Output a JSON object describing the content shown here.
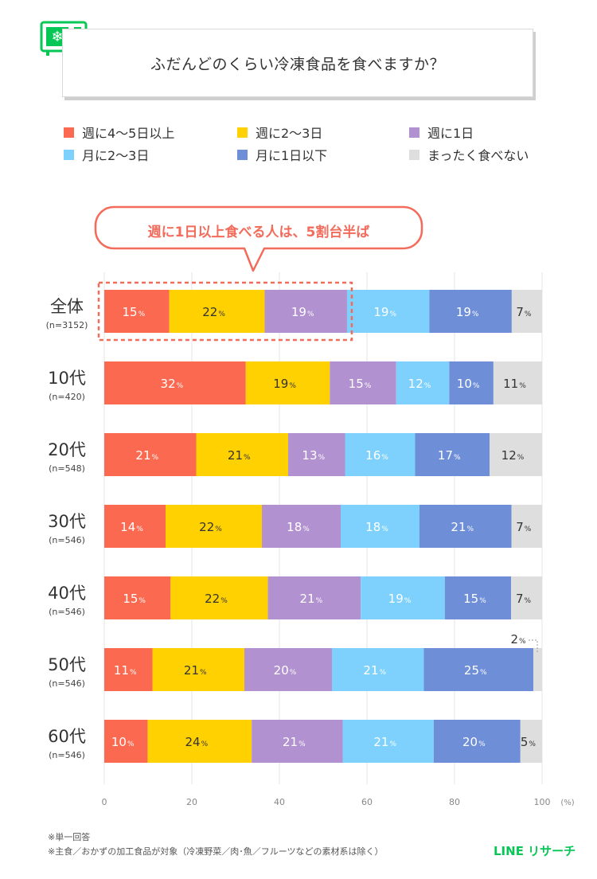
{
  "title": "ふだんどのくらい冷凍食品を食べますか？",
  "legend": [
    {
      "label": "週に4～5日以上",
      "color": "#fb6a50"
    },
    {
      "label": "週に2～3日",
      "color": "#ffd100"
    },
    {
      "label": "週に1日",
      "color": "#b191cf"
    },
    {
      "label": "月に2～3日",
      "color": "#7dd1fc"
    },
    {
      "label": "月に1日以下",
      "color": "#6f8ed8"
    },
    {
      "label": "まったく食べない",
      "color": "#dedede"
    }
  ],
  "callout": "週に1日以上食べる人は、5割台半ば",
  "chart_data": {
    "type": "bar",
    "orientation": "horizontal",
    "stacked": true,
    "xlim": [
      0,
      100
    ],
    "x_ticks": [
      "0",
      "20",
      "40",
      "60",
      "80",
      "100"
    ],
    "x_unit": "(%)",
    "unit_suffix": "%",
    "categories": [
      {
        "name": "全体",
        "n": "(n=3152)"
      },
      {
        "name": "10代",
        "n": "(n=420)"
      },
      {
        "name": "20代",
        "n": "(n=548)"
      },
      {
        "name": "30代",
        "n": "(n=546)"
      },
      {
        "name": "40代",
        "n": "(n=546)"
      },
      {
        "name": "50代",
        "n": "(n=546)"
      },
      {
        "name": "60代",
        "n": "(n=546)"
      }
    ],
    "series": [
      {
        "name": "週に4～5日以上",
        "values": [
          15,
          32,
          21,
          14,
          15,
          11,
          10
        ]
      },
      {
        "name": "週に2～3日",
        "values": [
          22,
          19,
          21,
          22,
          22,
          21,
          24
        ]
      },
      {
        "name": "週に1日",
        "values": [
          19,
          15,
          13,
          18,
          21,
          20,
          21
        ]
      },
      {
        "name": "月に2～3日",
        "values": [
          19,
          12,
          16,
          18,
          19,
          21,
          21
        ]
      },
      {
        "name": "月に1日以下",
        "values": [
          19,
          10,
          17,
          21,
          15,
          25,
          20
        ]
      },
      {
        "name": "まったく食べない",
        "values": [
          7,
          11,
          12,
          7,
          7,
          2,
          5
        ]
      }
    ]
  },
  "footnotes": [
    "※単一回答",
    "※主食／おかずの加工食品が対象（冷凍野菜／肉･魚／フルーツなどの素材系は除く）"
  ],
  "brand": "LINE リサーチ"
}
